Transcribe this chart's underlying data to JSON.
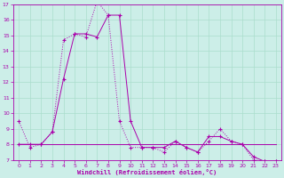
{
  "xlabel": "Windchill (Refroidissement éolien,°C)",
  "bg_color": "#cceee8",
  "line_color": "#aa00aa",
  "grid_color": "#aaddcc",
  "xlim": [
    -0.5,
    23.5
  ],
  "ylim": [
    7,
    17
  ],
  "yticks": [
    7,
    8,
    9,
    10,
    11,
    12,
    13,
    14,
    15,
    16,
    17
  ],
  "xticks": [
    0,
    1,
    2,
    3,
    4,
    5,
    6,
    7,
    8,
    9,
    10,
    11,
    12,
    13,
    14,
    15,
    16,
    17,
    18,
    19,
    20,
    21,
    22,
    23
  ],
  "series1_x": [
    0,
    1,
    2,
    3,
    4,
    5,
    6,
    7,
    8,
    9,
    10,
    11,
    12,
    13,
    14,
    15,
    16,
    17,
    18,
    19,
    20,
    21,
    22,
    23
  ],
  "series1_y": [
    9.5,
    7.8,
    8.0,
    8.8,
    14.7,
    15.1,
    14.9,
    17.2,
    16.3,
    9.5,
    7.8,
    7.8,
    7.8,
    7.5,
    8.2,
    7.8,
    7.5,
    8.2,
    9.0,
    8.2,
    8.0,
    7.0,
    6.9,
    6.9
  ],
  "series2_x": [
    0,
    1,
    2,
    3,
    4,
    5,
    6,
    7,
    8,
    9,
    10,
    11,
    12,
    13,
    14,
    15,
    16,
    17,
    18,
    19,
    20,
    21,
    22,
    23
  ],
  "series2_y": [
    8.0,
    8.0,
    8.0,
    8.8,
    12.2,
    15.1,
    15.1,
    14.9,
    16.3,
    16.3,
    9.5,
    7.8,
    7.8,
    7.8,
    8.2,
    7.8,
    7.5,
    8.5,
    8.5,
    8.2,
    8.0,
    7.2,
    6.9,
    6.9
  ],
  "series3_x": [
    0,
    1,
    2,
    3,
    4,
    5,
    6,
    7,
    8,
    9,
    10,
    11,
    12,
    13,
    14,
    15,
    16,
    17,
    18,
    19,
    20,
    21,
    22,
    23
  ],
  "series3_y": [
    8.0,
    8.0,
    8.0,
    8.0,
    8.0,
    8.0,
    8.0,
    8.0,
    8.0,
    8.0,
    8.0,
    8.0,
    8.0,
    8.0,
    8.0,
    8.0,
    8.0,
    8.0,
    8.0,
    8.0,
    8.0,
    8.0,
    8.0,
    8.0
  ]
}
